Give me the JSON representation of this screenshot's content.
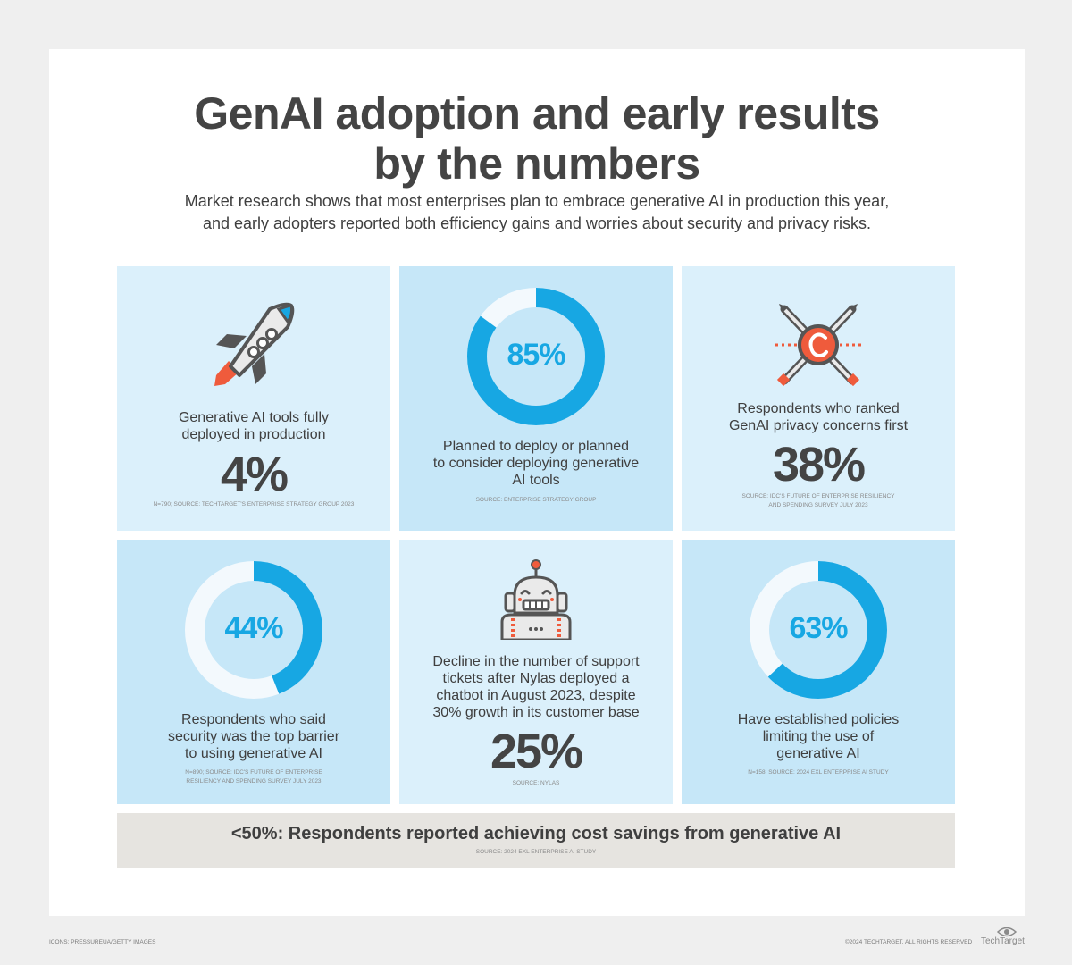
{
  "header": {
    "title_line1": "GenAI adoption and early results",
    "title_line2": "by the numbers",
    "subtitle_line1": "Market research shows that most enterprises plan to embrace generative AI in production this year,",
    "subtitle_line2": "and early adopters reported both efficiency gains and worries about security and privacy risks."
  },
  "tiles": [
    {
      "icon": "rocket-icon",
      "label_lines": [
        "Generative AI tools fully",
        "deployed in production"
      ],
      "stat": "4%",
      "value": 4,
      "source_lines": [
        "N=790; SOURCE: TECHTARGET'S ENTERPRISE STRATEGY GROUP 2023"
      ]
    },
    {
      "icon": "donut-chart",
      "donut_value": 85,
      "stat": "85%",
      "label_lines": [
        "Planned to deploy or planned",
        "to consider deploying generative",
        "AI tools"
      ],
      "source_lines": [
        "SOURCE: ENTERPRISE STRATEGY GROUP"
      ]
    },
    {
      "icon": "privacy-copyright-icon",
      "label_lines": [
        "Respondents who ranked",
        "GenAI privacy concerns first"
      ],
      "stat": "38%",
      "value": 38,
      "source_lines": [
        "SOURCE: IDC'S FUTURE OF ENTERPRISE RESILIENCY",
        "AND SPENDING SURVEY JULY 2023"
      ]
    },
    {
      "icon": "donut-chart",
      "donut_value": 44,
      "stat": "44%",
      "label_lines": [
        "Respondents who said",
        "security was the top barrier",
        "to using generative AI"
      ],
      "source_lines": [
        "N=890; SOURCE: IDC'S FUTURE OF ENTERPRISE",
        "RESILIENCY AND SPENDING SURVEY JULY 2023"
      ]
    },
    {
      "icon": "robot-icon",
      "label_lines": [
        "Decline in the number of support",
        "tickets after Nylas deployed a",
        "chatbot in August 2023, despite",
        "30% growth in its customer base"
      ],
      "stat": "25%",
      "value": 25,
      "source_lines": [
        "SOURCE: NYLAS"
      ]
    },
    {
      "icon": "donut-chart",
      "donut_value": 63,
      "stat": "63%",
      "label_lines": [
        "Have established policies",
        "limiting the use of",
        "generative AI"
      ],
      "source_lines": [
        "N=158; SOURCE: 2024 EXL ENTERPRISE AI STUDY"
      ]
    }
  ],
  "banner": {
    "text": "<50%: Respondents reported achieving cost savings from generative AI",
    "source": "SOURCE: 2024 EXL ENTERPRISE AI STUDY"
  },
  "footer": {
    "icons_credit": "ICONS: PRESSUREUA/GETTY IMAGES",
    "copyright": "©2024 TECHTARGET. ALL RIGHTS RESERVED",
    "logo_text": "TechTarget"
  },
  "colors": {
    "accent_blue": "#17a7e3",
    "tile_light": "#dbf0fb",
    "tile_dark": "#c6e7f8",
    "donut_track": "#f3f9fd",
    "icon_orange": "#ef5b3c",
    "icon_gray": "#555555",
    "banner_bg": "#e6e4e0"
  }
}
